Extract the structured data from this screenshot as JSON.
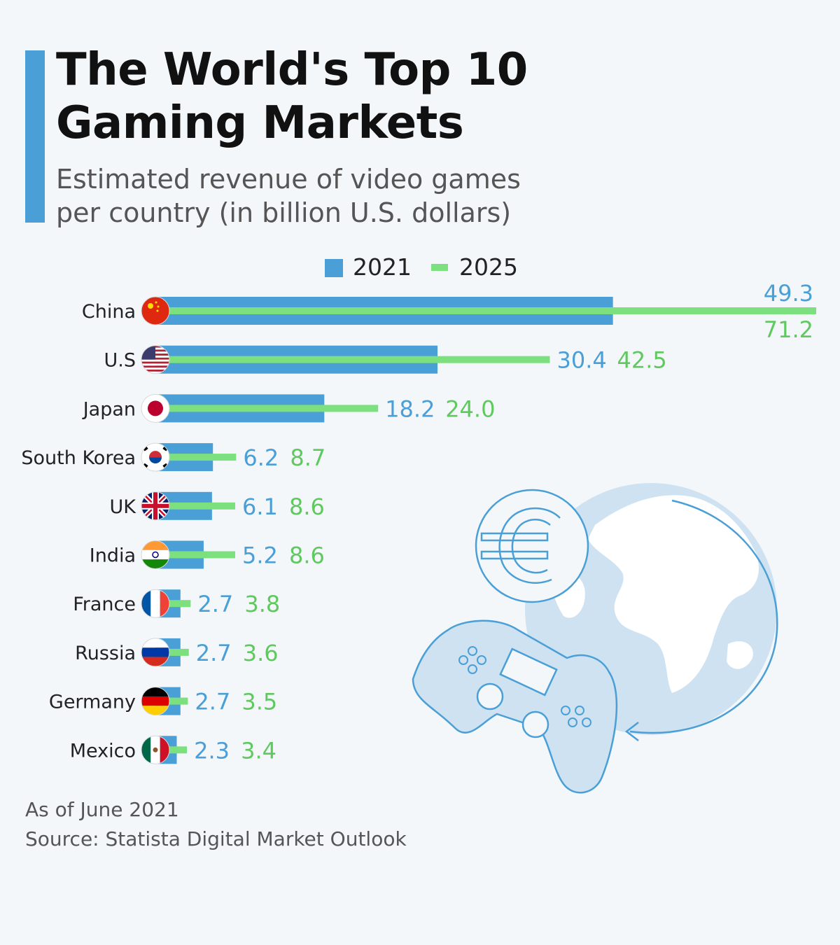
{
  "header": {
    "title_line1": "The World's Top 10",
    "title_line2": "Gaming Markets",
    "subtitle_line1": "Estimated revenue of video games",
    "subtitle_line2": "per country (in billion U.S. dollars)"
  },
  "legend": {
    "label_2021": "2021",
    "label_2025": "2025"
  },
  "colors": {
    "series_2021": "#4a9fd6",
    "series_2025": "#7de07e",
    "label_2021": "#4a9fd6",
    "label_2025": "#5fc95f"
  },
  "chart_data": {
    "type": "bar",
    "orientation": "horizontal",
    "categories": [
      "China",
      "U.S",
      "Japan",
      "South Korea",
      "UK",
      "India",
      "France",
      "Russia",
      "Germany",
      "Mexico"
    ],
    "series": [
      {
        "name": "2021",
        "values": [
          49.3,
          30.4,
          18.2,
          6.2,
          6.1,
          5.2,
          2.7,
          2.7,
          2.7,
          2.3
        ]
      },
      {
        "name": "2025",
        "values": [
          71.2,
          42.5,
          24.0,
          8.7,
          8.6,
          8.6,
          3.8,
          3.6,
          3.5,
          3.4
        ]
      }
    ],
    "data_labels_2021": [
      "49.3",
      "30.4",
      "18.2",
      "6.2",
      "6.1",
      "5.2",
      "2.7",
      "2.7",
      "2.7",
      "2.3"
    ],
    "data_labels_2025": [
      "71.2",
      "42.5",
      "24.0",
      "8.7",
      "8.6",
      "8.6",
      "3.8",
      "3.6",
      "3.5",
      "3.4"
    ],
    "flags": [
      "china-flag-icon",
      "us-flag-icon",
      "japan-flag-icon",
      "south-korea-flag-icon",
      "uk-flag-icon",
      "india-flag-icon",
      "france-flag-icon",
      "russia-flag-icon",
      "germany-flag-icon",
      "mexico-flag-icon"
    ],
    "xlim": [
      0,
      71.2
    ],
    "legend_position": "top",
    "grid": false
  },
  "notes": {
    "as_of": "As of June 2021",
    "source": "Source: Statista Digital Market Outlook"
  }
}
